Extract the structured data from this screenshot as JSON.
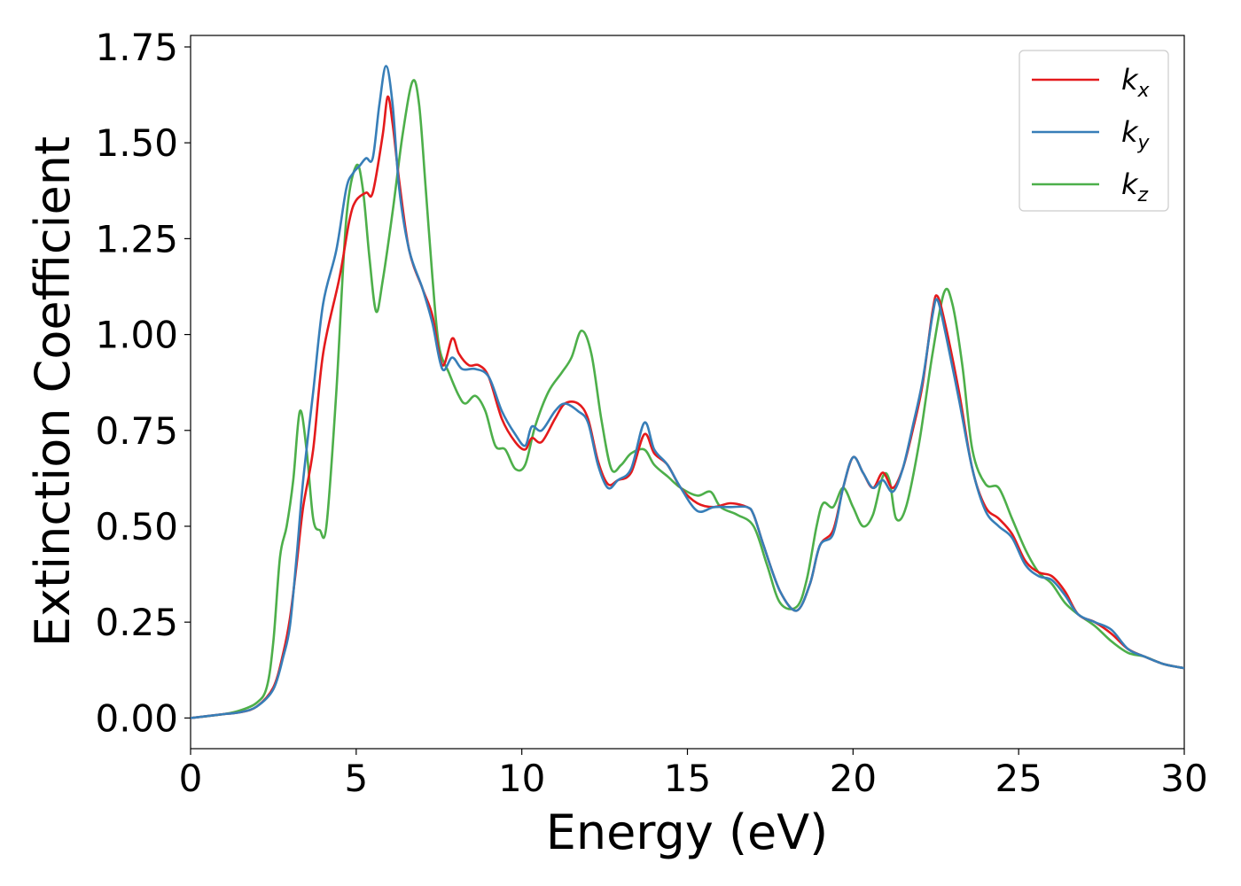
{
  "chart_data": {
    "type": "line",
    "xlabel": "Energy (eV)",
    "ylabel": "Extinction Coefficient",
    "xlim": [
      0,
      30
    ],
    "ylim": [
      -0.08,
      1.78
    ],
    "xticks": [
      0,
      5,
      10,
      15,
      20,
      25,
      30
    ],
    "xtick_labels": [
      "0",
      "5",
      "10",
      "15",
      "20",
      "25",
      "30"
    ],
    "yticks": [
      0,
      0.25,
      0.5,
      0.75,
      1.0,
      1.25,
      1.5,
      1.75
    ],
    "ytick_labels": [
      "0.00",
      "0.25",
      "0.50",
      "0.75",
      "1.00",
      "1.25",
      "1.50",
      "1.75"
    ],
    "grid": false,
    "legend_position": "top-right",
    "series": [
      {
        "name": "k",
        "subscript": "x",
        "color": "#e41a1c",
        "points": [
          [
            0,
            0
          ],
          [
            1,
            0.01
          ],
          [
            1.5,
            0.015
          ],
          [
            2,
            0.03
          ],
          [
            2.5,
            0.08
          ],
          [
            2.8,
            0.17
          ],
          [
            3,
            0.26
          ],
          [
            3.2,
            0.4
          ],
          [
            3.4,
            0.55
          ],
          [
            3.7,
            0.7
          ],
          [
            4,
            0.95
          ],
          [
            4.5,
            1.15
          ],
          [
            4.8,
            1.3
          ],
          [
            5,
            1.35
          ],
          [
            5.3,
            1.37
          ],
          [
            5.5,
            1.37
          ],
          [
            5.8,
            1.52
          ],
          [
            5.95,
            1.62
          ],
          [
            6.1,
            1.55
          ],
          [
            6.3,
            1.4
          ],
          [
            6.6,
            1.22
          ],
          [
            7,
            1.12
          ],
          [
            7.3,
            1.05
          ],
          [
            7.6,
            0.92
          ],
          [
            7.9,
            0.99
          ],
          [
            8.1,
            0.95
          ],
          [
            8.4,
            0.92
          ],
          [
            8.7,
            0.92
          ],
          [
            9,
            0.89
          ],
          [
            9.4,
            0.78
          ],
          [
            9.8,
            0.72
          ],
          [
            10.1,
            0.7
          ],
          [
            10.3,
            0.73
          ],
          [
            10.6,
            0.72
          ],
          [
            11,
            0.78
          ],
          [
            11.3,
            0.82
          ],
          [
            11.7,
            0.82
          ],
          [
            12,
            0.78
          ],
          [
            12.3,
            0.67
          ],
          [
            12.6,
            0.61
          ],
          [
            12.9,
            0.62
          ],
          [
            13.3,
            0.64
          ],
          [
            13.7,
            0.74
          ],
          [
            14,
            0.69
          ],
          [
            14.4,
            0.66
          ],
          [
            14.8,
            0.6
          ],
          [
            15.3,
            0.56
          ],
          [
            15.8,
            0.55
          ],
          [
            16.3,
            0.56
          ],
          [
            16.8,
            0.55
          ],
          [
            17,
            0.53
          ],
          [
            17.3,
            0.45
          ],
          [
            17.8,
            0.33
          ],
          [
            18.3,
            0.28
          ],
          [
            18.7,
            0.35
          ],
          [
            19,
            0.45
          ],
          [
            19.4,
            0.49
          ],
          [
            19.7,
            0.6
          ],
          [
            20,
            0.68
          ],
          [
            20.3,
            0.64
          ],
          [
            20.6,
            0.6
          ],
          [
            20.9,
            0.64
          ],
          [
            21.2,
            0.6
          ],
          [
            21.5,
            0.65
          ],
          [
            21.8,
            0.75
          ],
          [
            22.1,
            0.87
          ],
          [
            22.4,
            1.06
          ],
          [
            22.55,
            1.1
          ],
          [
            22.8,
            1.02
          ],
          [
            23.2,
            0.85
          ],
          [
            23.6,
            0.65
          ],
          [
            24,
            0.55
          ],
          [
            24.4,
            0.52
          ],
          [
            24.8,
            0.48
          ],
          [
            25.2,
            0.41
          ],
          [
            25.6,
            0.38
          ],
          [
            26,
            0.37
          ],
          [
            26.4,
            0.33
          ],
          [
            26.8,
            0.27
          ],
          [
            27.3,
            0.25
          ],
          [
            27.8,
            0.22
          ],
          [
            28.3,
            0.18
          ],
          [
            28.8,
            0.16
          ],
          [
            29.4,
            0.14
          ],
          [
            30,
            0.13
          ]
        ]
      },
      {
        "name": "k",
        "subscript": "y",
        "color": "#377eb8",
        "points": [
          [
            0,
            0
          ],
          [
            1,
            0.01
          ],
          [
            1.5,
            0.015
          ],
          [
            2,
            0.03
          ],
          [
            2.5,
            0.075
          ],
          [
            2.8,
            0.16
          ],
          [
            3,
            0.24
          ],
          [
            3.2,
            0.42
          ],
          [
            3.4,
            0.62
          ],
          [
            3.7,
            0.85
          ],
          [
            4,
            1.08
          ],
          [
            4.4,
            1.22
          ],
          [
            4.7,
            1.38
          ],
          [
            4.9,
            1.42
          ],
          [
            5.1,
            1.44
          ],
          [
            5.3,
            1.46
          ],
          [
            5.5,
            1.46
          ],
          [
            5.7,
            1.6
          ],
          [
            5.9,
            1.7
          ],
          [
            6.1,
            1.6
          ],
          [
            6.3,
            1.38
          ],
          [
            6.6,
            1.22
          ],
          [
            7,
            1.12
          ],
          [
            7.3,
            1.03
          ],
          [
            7.6,
            0.91
          ],
          [
            7.9,
            0.94
          ],
          [
            8.2,
            0.91
          ],
          [
            8.6,
            0.91
          ],
          [
            9,
            0.89
          ],
          [
            9.4,
            0.8
          ],
          [
            9.8,
            0.74
          ],
          [
            10.1,
            0.71
          ],
          [
            10.3,
            0.76
          ],
          [
            10.6,
            0.75
          ],
          [
            11,
            0.8
          ],
          [
            11.3,
            0.82
          ],
          [
            11.7,
            0.8
          ],
          [
            12,
            0.77
          ],
          [
            12.3,
            0.66
          ],
          [
            12.6,
            0.6
          ],
          [
            12.9,
            0.62
          ],
          [
            13.3,
            0.65
          ],
          [
            13.7,
            0.77
          ],
          [
            14,
            0.7
          ],
          [
            14.4,
            0.66
          ],
          [
            14.8,
            0.6
          ],
          [
            15.3,
            0.54
          ],
          [
            15.8,
            0.55
          ],
          [
            16.3,
            0.55
          ],
          [
            16.8,
            0.55
          ],
          [
            17,
            0.53
          ],
          [
            17.3,
            0.45
          ],
          [
            17.8,
            0.33
          ],
          [
            18.3,
            0.28
          ],
          [
            18.7,
            0.35
          ],
          [
            19,
            0.45
          ],
          [
            19.4,
            0.48
          ],
          [
            19.7,
            0.6
          ],
          [
            20,
            0.68
          ],
          [
            20.3,
            0.64
          ],
          [
            20.6,
            0.6
          ],
          [
            20.9,
            0.62
          ],
          [
            21.2,
            0.59
          ],
          [
            21.5,
            0.65
          ],
          [
            21.8,
            0.76
          ],
          [
            22.1,
            0.88
          ],
          [
            22.4,
            1.05
          ],
          [
            22.55,
            1.09
          ],
          [
            22.8,
            1.0
          ],
          [
            23.2,
            0.83
          ],
          [
            23.6,
            0.65
          ],
          [
            24,
            0.54
          ],
          [
            24.4,
            0.5
          ],
          [
            24.8,
            0.47
          ],
          [
            25.2,
            0.4
          ],
          [
            25.6,
            0.37
          ],
          [
            26,
            0.36
          ],
          [
            26.4,
            0.32
          ],
          [
            26.8,
            0.27
          ],
          [
            27.3,
            0.25
          ],
          [
            27.8,
            0.23
          ],
          [
            28.3,
            0.18
          ],
          [
            28.8,
            0.16
          ],
          [
            29.4,
            0.14
          ],
          [
            30,
            0.13
          ]
        ]
      },
      {
        "name": "k",
        "subscript": "z",
        "color": "#4daf4a",
        "points": [
          [
            0,
            0
          ],
          [
            1,
            0.01
          ],
          [
            1.5,
            0.02
          ],
          [
            2,
            0.04
          ],
          [
            2.3,
            0.08
          ],
          [
            2.5,
            0.2
          ],
          [
            2.7,
            0.42
          ],
          [
            2.9,
            0.5
          ],
          [
            3.1,
            0.62
          ],
          [
            3.3,
            0.8
          ],
          [
            3.5,
            0.7
          ],
          [
            3.7,
            0.52
          ],
          [
            3.9,
            0.49
          ],
          [
            4.1,
            0.5
          ],
          [
            4.4,
            0.85
          ],
          [
            4.7,
            1.3
          ],
          [
            5,
            1.44
          ],
          [
            5.2,
            1.38
          ],
          [
            5.4,
            1.2
          ],
          [
            5.6,
            1.06
          ],
          [
            5.8,
            1.14
          ],
          [
            6.1,
            1.32
          ],
          [
            6.4,
            1.52
          ],
          [
            6.7,
            1.66
          ],
          [
            6.9,
            1.6
          ],
          [
            7.1,
            1.38
          ],
          [
            7.3,
            1.15
          ],
          [
            7.5,
            0.97
          ],
          [
            7.8,
            0.9
          ],
          [
            8.1,
            0.84
          ],
          [
            8.3,
            0.82
          ],
          [
            8.6,
            0.84
          ],
          [
            8.9,
            0.8
          ],
          [
            9.2,
            0.71
          ],
          [
            9.5,
            0.7
          ],
          [
            9.8,
            0.65
          ],
          [
            10.1,
            0.66
          ],
          [
            10.4,
            0.76
          ],
          [
            10.8,
            0.85
          ],
          [
            11.2,
            0.9
          ],
          [
            11.5,
            0.94
          ],
          [
            11.8,
            1.01
          ],
          [
            12.1,
            0.95
          ],
          [
            12.4,
            0.78
          ],
          [
            12.7,
            0.65
          ],
          [
            13,
            0.66
          ],
          [
            13.3,
            0.69
          ],
          [
            13.7,
            0.7
          ],
          [
            14,
            0.66
          ],
          [
            14.4,
            0.63
          ],
          [
            14.8,
            0.6
          ],
          [
            15.3,
            0.58
          ],
          [
            15.7,
            0.59
          ],
          [
            16,
            0.55
          ],
          [
            16.5,
            0.53
          ],
          [
            17,
            0.5
          ],
          [
            17.4,
            0.4
          ],
          [
            17.8,
            0.3
          ],
          [
            18.3,
            0.29
          ],
          [
            18.6,
            0.36
          ],
          [
            18.9,
            0.5
          ],
          [
            19.1,
            0.56
          ],
          [
            19.4,
            0.55
          ],
          [
            19.7,
            0.6
          ],
          [
            20,
            0.55
          ],
          [
            20.3,
            0.5
          ],
          [
            20.6,
            0.53
          ],
          [
            20.9,
            0.63
          ],
          [
            21.1,
            0.62
          ],
          [
            21.3,
            0.52
          ],
          [
            21.6,
            0.55
          ],
          [
            22,
            0.72
          ],
          [
            22.4,
            0.95
          ],
          [
            22.75,
            1.11
          ],
          [
            23,
            1.08
          ],
          [
            23.3,
            0.92
          ],
          [
            23.6,
            0.7
          ],
          [
            24,
            0.61
          ],
          [
            24.4,
            0.6
          ],
          [
            24.8,
            0.52
          ],
          [
            25.2,
            0.44
          ],
          [
            25.6,
            0.38
          ],
          [
            26,
            0.35
          ],
          [
            26.4,
            0.3
          ],
          [
            26.8,
            0.27
          ],
          [
            27.3,
            0.24
          ],
          [
            27.8,
            0.2
          ],
          [
            28.3,
            0.17
          ],
          [
            28.8,
            0.16
          ],
          [
            29.4,
            0.14
          ],
          [
            30,
            0.13
          ]
        ]
      }
    ]
  }
}
